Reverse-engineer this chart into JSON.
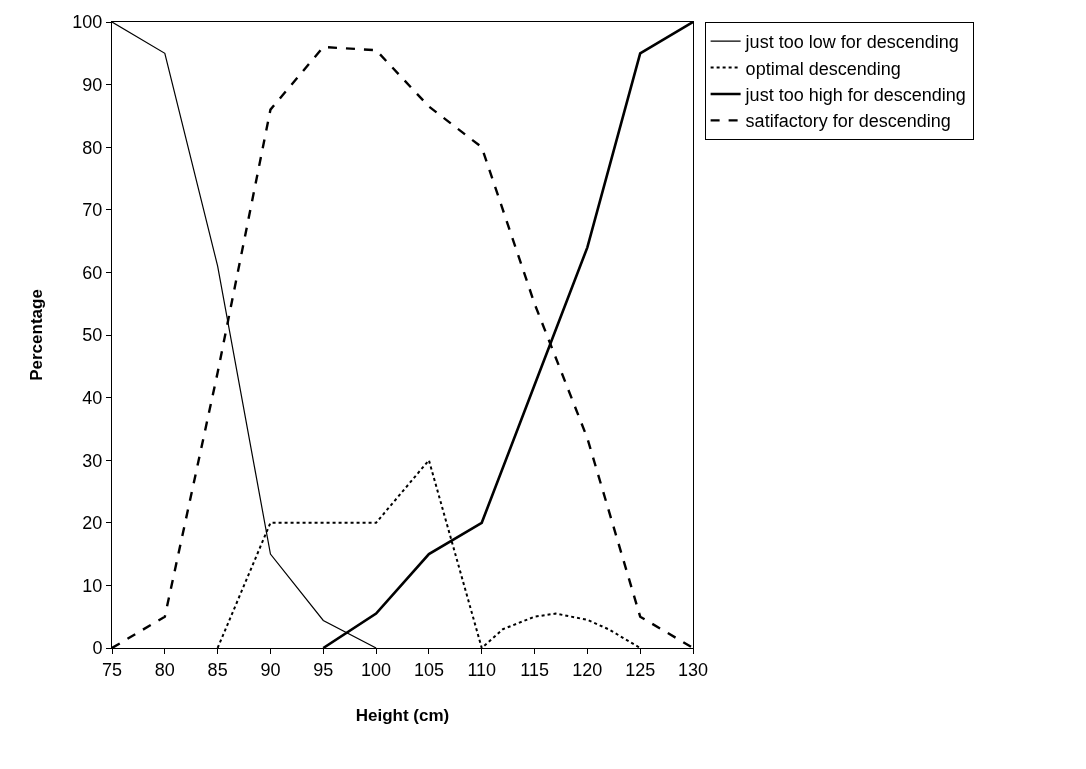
{
  "chart_data": {
    "type": "line",
    "xlabel": "Height (cm)",
    "ylabel": "Percentage",
    "xlim": [
      75,
      130
    ],
    "xticks": [
      75,
      80,
      85,
      90,
      95,
      100,
      105,
      110,
      115,
      120,
      125,
      130
    ],
    "ylim": [
      0,
      100
    ],
    "yticks": [
      0,
      10,
      20,
      30,
      40,
      50,
      60,
      70,
      80,
      90,
      100
    ],
    "legend": "top right",
    "marker": "none",
    "series": [
      {
        "name": "just too low for descending",
        "color": "#000000",
        "line_style": "solid",
        "x": [
          75,
          80,
          85,
          90,
          95,
          100
        ],
        "values": [
          100,
          95,
          61,
          15,
          4.4,
          0
        ]
      },
      {
        "name": "optimal descending",
        "color": "#000000",
        "line_style": "dotted",
        "x": [
          85,
          90,
          95,
          100,
          102,
          105,
          110,
          112,
          115,
          117,
          120,
          122,
          125
        ],
        "values": [
          0,
          20,
          20,
          20,
          24,
          30,
          0,
          3,
          5,
          5.5,
          4.5,
          3,
          0
        ]
      },
      {
        "name": "just too high for descending",
        "color": "#000000",
        "line_style": "solid",
        "x": [
          95,
          100,
          105,
          110,
          115,
          120,
          125,
          130
        ],
        "values": [
          0,
          5.5,
          15,
          20,
          42,
          64,
          95,
          100
        ]
      },
      {
        "name": "satifactory for descending",
        "color": "#000000",
        "line_style": "dashed",
        "x": [
          75,
          80,
          85,
          90,
          95,
          100,
          105,
          110,
          115,
          120,
          125,
          130
        ],
        "values": [
          0,
          5,
          44,
          86,
          96,
          95.5,
          86.5,
          80,
          55,
          33.5,
          5,
          0
        ]
      }
    ]
  }
}
